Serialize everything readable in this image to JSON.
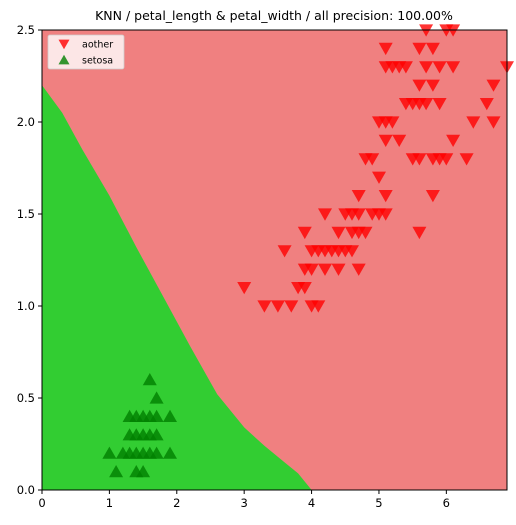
{
  "chart_data": {
    "type": "scatter",
    "title": "KNN / petal_length & petal_width / all precision: 100.00%",
    "xlabel": "",
    "ylabel": "",
    "xlim": [
      0,
      6.9
    ],
    "ylim": [
      0,
      2.5
    ],
    "xticks": [
      "0",
      "1",
      "2",
      "3",
      "4",
      "5",
      "6"
    ],
    "yticks": [
      "0.0",
      "0.5",
      "1.0",
      "1.5",
      "2.0",
      "2.5"
    ],
    "grid": false,
    "legend_position": "top-left",
    "colors": {
      "aother_region": "#f08080",
      "setosa_region": "#32cd32",
      "aother_marker": "#ff0000",
      "setosa_marker": "#008000"
    },
    "decision_boundary": [
      [
        0.0,
        2.2
      ],
      [
        0.3,
        2.05
      ],
      [
        0.6,
        1.85
      ],
      [
        1.0,
        1.6
      ],
      [
        1.4,
        1.32
      ],
      [
        1.8,
        1.05
      ],
      [
        2.2,
        0.78
      ],
      [
        2.6,
        0.52
      ],
      [
        3.0,
        0.34
      ],
      [
        3.3,
        0.24
      ],
      [
        3.6,
        0.15
      ],
      [
        3.8,
        0.09
      ],
      [
        4.0,
        0.0
      ]
    ],
    "series": [
      {
        "name": "aother",
        "marker": "triangle-down",
        "points": [
          [
            3.0,
            1.1
          ],
          [
            3.3,
            1.0
          ],
          [
            3.5,
            1.0
          ],
          [
            3.6,
            1.3
          ],
          [
            3.7,
            1.0
          ],
          [
            3.8,
            1.1
          ],
          [
            3.9,
            1.1
          ],
          [
            3.9,
            1.2
          ],
          [
            3.9,
            1.4
          ],
          [
            4.0,
            1.0
          ],
          [
            4.0,
            1.2
          ],
          [
            4.0,
            1.3
          ],
          [
            4.1,
            1.0
          ],
          [
            4.1,
            1.3
          ],
          [
            4.2,
            1.2
          ],
          [
            4.2,
            1.3
          ],
          [
            4.2,
            1.5
          ],
          [
            4.3,
            1.3
          ],
          [
            4.4,
            1.2
          ],
          [
            4.4,
            1.3
          ],
          [
            4.4,
            1.4
          ],
          [
            4.5,
            1.3
          ],
          [
            4.5,
            1.5
          ],
          [
            4.6,
            1.3
          ],
          [
            4.6,
            1.4
          ],
          [
            4.6,
            1.5
          ],
          [
            4.7,
            1.2
          ],
          [
            4.7,
            1.4
          ],
          [
            4.7,
            1.5
          ],
          [
            4.7,
            1.6
          ],
          [
            4.8,
            1.4
          ],
          [
            4.8,
            1.8
          ],
          [
            4.9,
            1.5
          ],
          [
            4.9,
            1.8
          ],
          [
            5.0,
            1.5
          ],
          [
            5.0,
            1.7
          ],
          [
            5.0,
            2.0
          ],
          [
            5.1,
            1.5
          ],
          [
            5.1,
            1.6
          ],
          [
            5.1,
            1.9
          ],
          [
            5.1,
            2.0
          ],
          [
            5.1,
            2.3
          ],
          [
            5.1,
            2.4
          ],
          [
            5.2,
            2.0
          ],
          [
            5.2,
            2.3
          ],
          [
            5.3,
            1.9
          ],
          [
            5.3,
            2.3
          ],
          [
            5.4,
            2.1
          ],
          [
            5.4,
            2.3
          ],
          [
            5.5,
            1.8
          ],
          [
            5.5,
            2.1
          ],
          [
            5.6,
            1.8
          ],
          [
            5.6,
            2.1
          ],
          [
            5.6,
            2.2
          ],
          [
            5.6,
            2.4
          ],
          [
            5.7,
            2.1
          ],
          [
            5.7,
            2.3
          ],
          [
            5.7,
            2.5
          ],
          [
            5.8,
            1.8
          ],
          [
            5.8,
            2.2
          ],
          [
            5.8,
            2.4
          ],
          [
            5.9,
            1.8
          ],
          [
            5.9,
            2.1
          ],
          [
            5.9,
            2.3
          ],
          [
            6.0,
            1.8
          ],
          [
            6.0,
            2.5
          ],
          [
            6.1,
            1.9
          ],
          [
            6.1,
            2.3
          ],
          [
            6.1,
            2.5
          ],
          [
            6.3,
            1.8
          ],
          [
            6.4,
            2.0
          ],
          [
            6.6,
            2.1
          ],
          [
            6.7,
            2.0
          ],
          [
            6.7,
            2.2
          ],
          [
            6.9,
            2.3
          ],
          [
            5.8,
            1.6
          ],
          [
            5.6,
            1.4
          ]
        ]
      },
      {
        "name": "setosa",
        "marker": "triangle-up",
        "points": [
          [
            1.0,
            0.2
          ],
          [
            1.1,
            0.1
          ],
          [
            1.2,
            0.2
          ],
          [
            1.3,
            0.2
          ],
          [
            1.3,
            0.3
          ],
          [
            1.3,
            0.4
          ],
          [
            1.4,
            0.1
          ],
          [
            1.4,
            0.2
          ],
          [
            1.4,
            0.3
          ],
          [
            1.5,
            0.1
          ],
          [
            1.5,
            0.2
          ],
          [
            1.5,
            0.4
          ],
          [
            1.6,
            0.2
          ],
          [
            1.6,
            0.4
          ],
          [
            1.6,
            0.6
          ],
          [
            1.7,
            0.2
          ],
          [
            1.7,
            0.3
          ],
          [
            1.7,
            0.4
          ],
          [
            1.7,
            0.5
          ],
          [
            1.9,
            0.2
          ],
          [
            1.9,
            0.4
          ],
          [
            1.4,
            0.4
          ],
          [
            1.6,
            0.3
          ],
          [
            1.5,
            0.3
          ]
        ]
      }
    ]
  }
}
